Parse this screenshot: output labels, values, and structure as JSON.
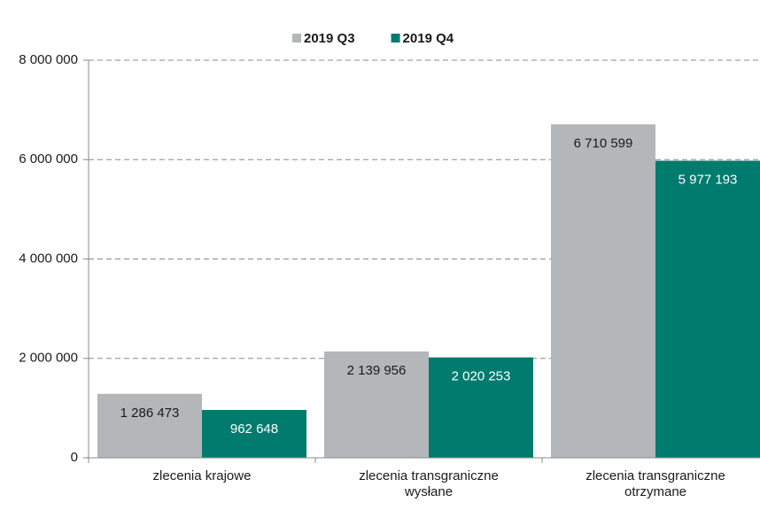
{
  "chart_data": {
    "type": "bar",
    "categories": [
      "zlecenia krajowe",
      "zlecenia transgraniczne wysłane",
      "zlecenia transgraniczne otrzymane"
    ],
    "series": [
      {
        "name": "2019 Q3",
        "color": "#b3b7ba",
        "values": [
          1286473,
          2139956,
          6710599
        ],
        "value_labels": [
          "1 286 473",
          "2 139 956",
          "6 710 599"
        ],
        "label_color": "#1a1a1a"
      },
      {
        "name": "2019 Q4",
        "color": "#007b6e",
        "values": [
          962648,
          2020253,
          5977193
        ],
        "value_labels": [
          "962 648",
          "2 020 253",
          "5 977 193"
        ],
        "label_color": "#ffffff"
      }
    ],
    "ylim": [
      0,
      8000000
    ],
    "yticks": [
      0,
      {
        "value": 2000000,
        "label": "2 000 000"
      },
      {
        "value": 4000000,
        "label": "4 000 000"
      },
      {
        "value": 6000000,
        "label": "6 000 000"
      },
      {
        "value": 8000000,
        "label": "8 000 000"
      }
    ],
    "grid": true,
    "legend": "top"
  }
}
